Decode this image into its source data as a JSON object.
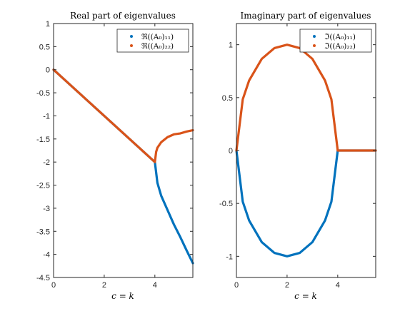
{
  "colors": {
    "series1": "#0072BD",
    "series2": "#D95319",
    "axis": "#262626"
  },
  "chart_data": [
    {
      "type": "scatter",
      "title": "Real part of eigenvalues",
      "xlabel": "c = k",
      "ylabel": "",
      "xlim": [
        0,
        5.5
      ],
      "ylim": [
        -4.5,
        1
      ],
      "xticks": [
        "0",
        "2",
        "4"
      ],
      "yticks": [
        "1",
        "0.5",
        "0",
        "-0.5",
        "-1",
        "-1.5",
        "-2",
        "-2.5",
        "-3",
        "-3.5",
        "-4",
        "-4.5"
      ],
      "legend": {
        "placement": "top-right",
        "entries": [
          "ℜ((A₀)₁₁)",
          "ℜ((A₀)₂₂)"
        ]
      },
      "series": [
        {
          "name": "ℜ((A₀)₁₁)",
          "color": "#0072BD",
          "points": [
            [
              0,
              0
            ],
            [
              1,
              -0.5
            ],
            [
              2,
              -1
            ],
            [
              3,
              -1.5
            ],
            [
              4,
              -2
            ],
            [
              4.1,
              -2.45
            ],
            [
              4.25,
              -2.73
            ],
            [
              4.5,
              -3.04
            ],
            [
              4.75,
              -3.35
            ],
            [
              5,
              -3.62
            ],
            [
              5.25,
              -3.91
            ],
            [
              5.5,
              -4.19
            ]
          ]
        },
        {
          "name": "ℜ((A₀)₂₂)",
          "color": "#D95319",
          "points": [
            [
              0,
              0
            ],
            [
              1,
              -0.5
            ],
            [
              2,
              -1
            ],
            [
              3,
              -1.5
            ],
            [
              4,
              -2
            ],
            [
              4.05,
              -1.78
            ],
            [
              4.1,
              -1.69
            ],
            [
              4.25,
              -1.57
            ],
            [
              4.5,
              -1.46
            ],
            [
              4.75,
              -1.4
            ],
            [
              5,
              -1.38
            ],
            [
              5.25,
              -1.34
            ],
            [
              5.5,
              -1.31
            ]
          ]
        }
      ]
    },
    {
      "type": "scatter",
      "title": "Imaginary part of eigenvalues",
      "xlabel": "c = k",
      "ylabel": "",
      "xlim": [
        0,
        5.5
      ],
      "ylim": [
        -1.2,
        1.2
      ],
      "xticks": [
        "0",
        "2",
        "4"
      ],
      "yticks": [
        "1",
        "0.5",
        "0",
        "-0.5",
        "-1"
      ],
      "legend": {
        "placement": "top-right",
        "entries": [
          "ℑ((A₀)₁₁)",
          "ℑ((A₀)₂₂)"
        ]
      },
      "series": [
        {
          "name": "ℑ((A₀)₁₁)",
          "color": "#0072BD",
          "points": [
            [
              0,
              0
            ],
            [
              0.25,
              -0.484
            ],
            [
              0.5,
              -0.661
            ],
            [
              1,
              -0.866
            ],
            [
              1.5,
              -0.968
            ],
            [
              2,
              -1
            ],
            [
              2.5,
              -0.968
            ],
            [
              3,
              -0.866
            ],
            [
              3.5,
              -0.661
            ],
            [
              3.75,
              -0.484
            ],
            [
              4,
              0
            ],
            [
              4.5,
              0
            ],
            [
              5,
              0
            ],
            [
              5.5,
              0
            ]
          ]
        },
        {
          "name": "ℑ((A₀)₂₂)",
          "color": "#D95319",
          "points": [
            [
              0,
              0
            ],
            [
              0.25,
              0.484
            ],
            [
              0.5,
              0.661
            ],
            [
              1,
              0.866
            ],
            [
              1.5,
              0.968
            ],
            [
              2,
              1
            ],
            [
              2.5,
              0.968
            ],
            [
              3,
              0.866
            ],
            [
              3.5,
              0.661
            ],
            [
              3.75,
              0.484
            ],
            [
              4,
              0
            ],
            [
              4.5,
              0
            ],
            [
              5,
              0
            ],
            [
              5.5,
              0
            ]
          ]
        }
      ]
    }
  ]
}
